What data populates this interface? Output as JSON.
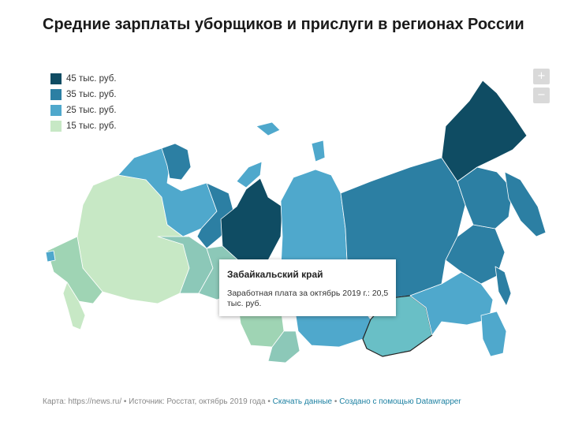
{
  "title": "Средние зарплаты уборщиков и прислуги в регионах России",
  "legend": [
    {
      "label": "45 тыс. руб.",
      "color": "#0f4c63"
    },
    {
      "label": "35 тыс. руб.",
      "color": "#2c7fa3"
    },
    {
      "label": "25 тыс. руб.",
      "color": "#4fa8cc"
    },
    {
      "label": "15 тыс. руб.",
      "color": "#c7e8c5"
    }
  ],
  "zoom": {
    "in_label": "+",
    "out_label": "−"
  },
  "tooltip": {
    "region": "Забайкальский край",
    "text": "Заработная плата за октябрь 2019 г.: 20,5 тыс. руб."
  },
  "footer": {
    "source": "Карта: https://news.ru/ • Источник: Росстат, октябрь 2019 года •",
    "download": "Скачать данные",
    "sep": "•",
    "created": "Создано с помощью Datawrapper"
  },
  "highlighted_region": "Забайкальский край"
}
